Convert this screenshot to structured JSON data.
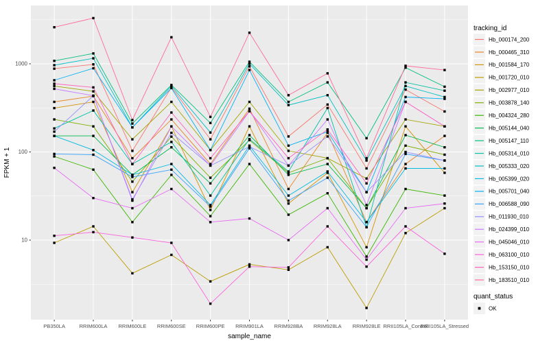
{
  "chart_data": {
    "type": "line",
    "title": "",
    "xlabel": "sample_name",
    "ylabel": "FPKM + 1",
    "y_scale": "log10",
    "ylim": [
      1.5,
      4000
    ],
    "y_ticks": [
      "10",
      "100",
      "1000"
    ],
    "grid": true,
    "legend_position": "right",
    "point_marker": "black-square",
    "categories": [
      "PB350LA",
      "RRIM600LA",
      "RRIM600LE",
      "RRIM600SE",
      "RRIM600PE",
      "RRIM901LA",
      "RRIM928BA",
      "RRIM928LA",
      "RRIM928LE",
      "RRII105LA_Control",
      "RRII105LA_Stressed"
    ],
    "legend_title": "tracking_id",
    "quant_legend": {
      "title": "quant_status",
      "value": "OK"
    },
    "series": [
      {
        "name": "Hb_000174_200",
        "color": "#F8766D",
        "values": [
          880,
          985,
          103,
          540,
          139,
          935,
          150,
          345,
          65,
          510,
          288
        ]
      },
      {
        "name": "Hb_000465_310",
        "color": "#E88526",
        "values": [
          370,
          430,
          85,
          234,
          73,
          310,
          38,
          165,
          16,
          73,
          152
        ]
      },
      {
        "name": "Hb_001584_170",
        "color": "#D39200",
        "values": [
          314,
          370,
          35,
          195,
          22,
          195,
          26,
          58,
          8.3,
          195,
          58
        ]
      },
      {
        "name": "Hb_001720_010",
        "color": "#BC9D00",
        "values": [
          9.3,
          14.3,
          4.2,
          6.8,
          3.4,
          5.3,
          4.6,
          8.3,
          1.7,
          12,
          23
        ]
      },
      {
        "name": "Hb_002977_010",
        "color": "#A3A500",
        "values": [
          560,
          487,
          139,
          370,
          105,
          370,
          103,
          85,
          50,
          234,
          195
        ]
      },
      {
        "name": "Hb_003878_140",
        "color": "#7CAE00",
        "values": [
          234,
          195,
          46,
          149,
          51,
          136,
          58,
          85,
          23,
          118,
          93
        ]
      },
      {
        "name": "Hb_004324_280",
        "color": "#39B600",
        "values": [
          89,
          63,
          16,
          55,
          18.7,
          73,
          19.4,
          34,
          6.5,
          38,
          32
        ]
      },
      {
        "name": "Hb_005144_040",
        "color": "#00BB4E",
        "values": [
          152,
          152,
          55,
          113,
          44,
          155,
          55,
          73,
          23,
          155,
          113
        ]
      },
      {
        "name": "Hb_005147_110",
        "color": "#00BF7D",
        "values": [
          1080,
          1310,
          210,
          575,
          213,
          1055,
          370,
          615,
          143,
          905,
          550
        ]
      },
      {
        "name": "Hb_005314_010",
        "color": "#00C1A3",
        "values": [
          185,
          295,
          73,
          130,
          32,
          140,
          60,
          315,
          14,
          615,
          495
        ]
      },
      {
        "name": "Hb_005333_020",
        "color": "#00BFC4",
        "values": [
          965,
          1155,
          190,
          560,
          166,
          1000,
          340,
          440,
          80,
          560,
          420
        ]
      },
      {
        "name": "Hb_005399_020",
        "color": "#00BAE0",
        "values": [
          152,
          105,
          55,
          73,
          25,
          118,
          32,
          60,
          16,
          65,
          65
        ]
      },
      {
        "name": "Hb_005701_040",
        "color": "#00B0F6",
        "values": [
          650,
          890,
          190,
          530,
          105,
          850,
          118,
          170,
          35,
          420,
          400
        ]
      },
      {
        "name": "Hb_006588_090",
        "color": "#35A2FF",
        "values": [
          95,
          93,
          52,
          63,
          24,
          110,
          28,
          51,
          14,
          95,
          80
        ]
      },
      {
        "name": "Hb_011930_010",
        "color": "#9590FF",
        "values": [
          170,
          435,
          29,
          165,
          70,
          115,
          70,
          150,
          35,
          100,
          80
        ]
      },
      {
        "name": "Hb_024399_010",
        "color": "#C77CFF",
        "values": [
          520,
          435,
          28,
          195,
          70,
          290,
          70,
          234,
          25,
          370,
          195
        ]
      },
      {
        "name": "Hb_045046_010",
        "color": "#E76BF3",
        "values": [
          66,
          30,
          23,
          38,
          16,
          17.6,
          10,
          23,
          6,
          23,
          26
        ]
      },
      {
        "name": "Hb_063100_010",
        "color": "#FA62DB",
        "values": [
          11.2,
          12.3,
          10.7,
          9.3,
          1.9,
          5.0,
          4.9,
          14.3,
          5.0,
          14.3,
          7.0
        ]
      },
      {
        "name": "Hb_153150_010",
        "color": "#FF62BC",
        "values": [
          595,
          540,
          73,
          280,
          85,
          290,
          85,
          180,
          44,
          370,
          195
        ]
      },
      {
        "name": "Hb_183510_010",
        "color": "#FF6A98",
        "values": [
          2600,
          3300,
          230,
          2000,
          250,
          2250,
          440,
          780,
          85,
          950,
          850
        ]
      }
    ]
  },
  "style": {
    "panel_bg": "#EBEBEB",
    "grid_color": "#FFFFFF",
    "tick_color": "#333333",
    "tick_label_color": "#4D4D4D",
    "text_color": "#000000",
    "legend_key_bg": "#F2F2F2",
    "point_color": "#000000"
  }
}
